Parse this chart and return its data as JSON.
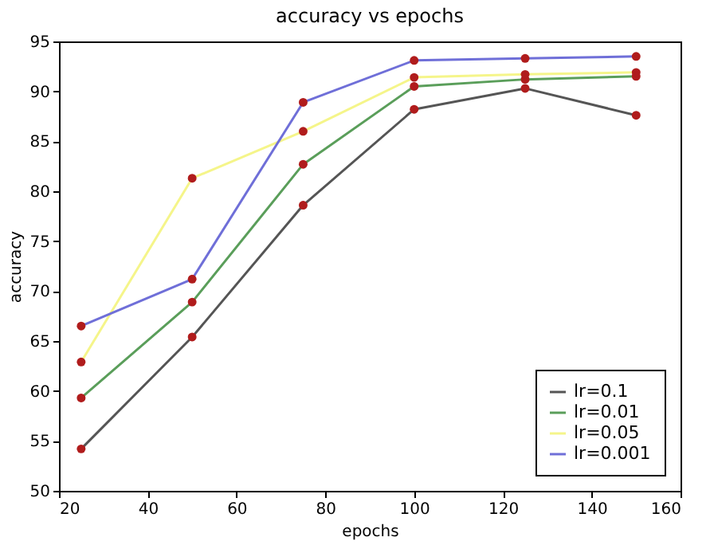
{
  "chart_data": {
    "type": "line",
    "title": "accuracy vs epochs",
    "xlabel": "epochs",
    "ylabel": "accuracy",
    "x": [
      25,
      50,
      75,
      100,
      125,
      150
    ],
    "series": [
      {
        "name": "lr=0.1",
        "color": "#555555",
        "values": [
          54.2,
          65.4,
          78.6,
          88.2,
          90.3,
          87.6
        ]
      },
      {
        "name": "lr=0.01",
        "color": "#5a9e5a",
        "values": [
          59.3,
          68.9,
          82.7,
          90.5,
          91.2,
          91.5
        ]
      },
      {
        "name": "lr=0.05",
        "color": "#f5f58a",
        "values": [
          62.9,
          81.3,
          86.0,
          91.4,
          91.7,
          91.9
        ]
      },
      {
        "name": "lr=0.001",
        "color": "#6f6fd8",
        "values": [
          66.5,
          71.2,
          88.9,
          93.1,
          93.3,
          93.5
        ]
      }
    ],
    "xlim": [
      20,
      160
    ],
    "xticks": [
      20,
      40,
      60,
      80,
      100,
      120,
      140,
      160
    ],
    "ylim": [
      50,
      95
    ],
    "yticks": [
      50,
      55,
      60,
      65,
      70,
      75,
      80,
      85,
      90,
      95
    ],
    "grid": false,
    "legend": "bottom right",
    "marker": "circle",
    "line_style": "solid"
  }
}
